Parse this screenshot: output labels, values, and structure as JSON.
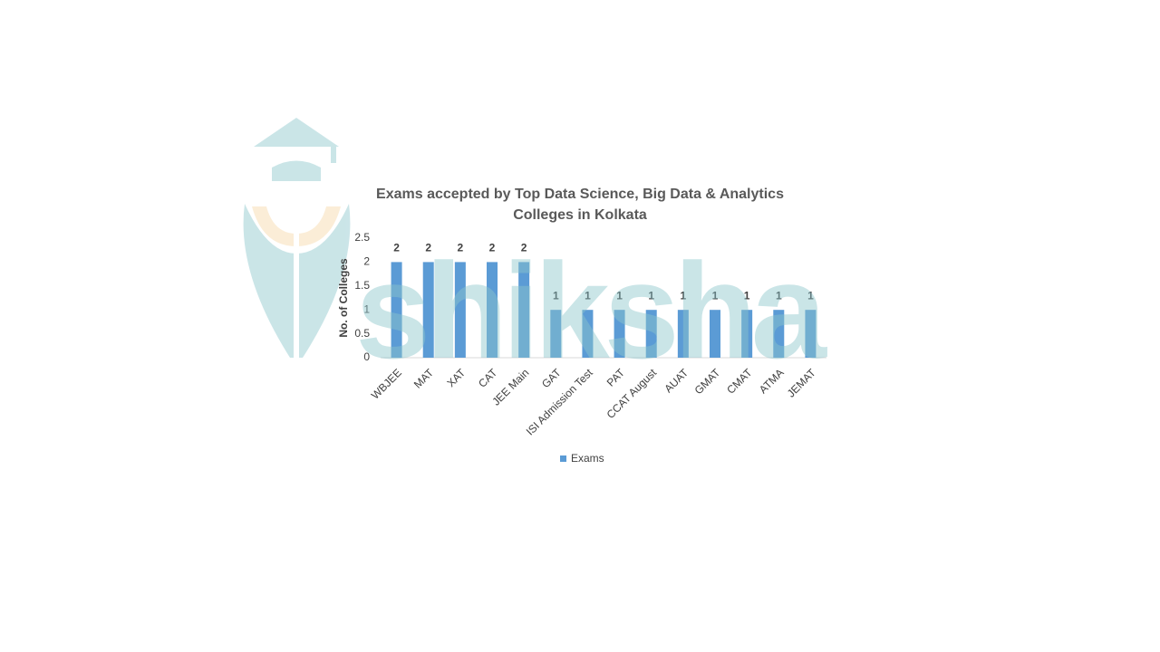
{
  "chart_data": {
    "type": "bar",
    "title": "Exams accepted by Top Data Science, Big Data & Analytics Colleges in Kolkata",
    "y_label": "No. of Colleges",
    "watermark": "shiksha",
    "categories": [
      "WBJEE",
      "MAT",
      "XAT",
      "CAT",
      "JEE Main",
      "GAT",
      "ISI Admission Test",
      "PAT",
      "CCAT August",
      "AUAT",
      "GMAT",
      "CMAT",
      "ATMA",
      "JEMAT"
    ],
    "series": [
      {
        "name": "Exams",
        "color": "#5b9bd5",
        "values": [
          2,
          2,
          2,
          2,
          2,
          1,
          1,
          1,
          1,
          1,
          1,
          1,
          1,
          1
        ]
      }
    ],
    "ylim": [
      0,
      2.5
    ],
    "yticks": [
      0,
      0.5,
      1,
      1.5,
      2,
      2.5
    ],
    "grid": false,
    "legend": "bottom"
  }
}
